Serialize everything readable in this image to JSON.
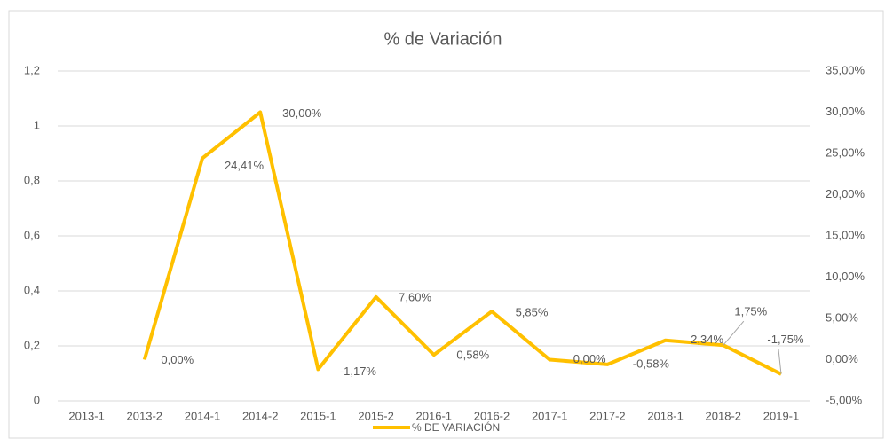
{
  "chart_data": {
    "type": "line",
    "title": "% de Variación",
    "categories": [
      "2013-1",
      "2013-2",
      "2014-1",
      "2014-2",
      "2015-1",
      "2015-2",
      "2016-1",
      "2016-2",
      "2017-1",
      "2017-2",
      "2018-1",
      "2018-2",
      "2019-1"
    ],
    "series": [
      {
        "name": "% DE VARIACIÓN",
        "color": "#FFC000",
        "axis": "y2",
        "values": [
          null,
          0,
          24.41,
          30,
          -1.17,
          7.6,
          0.58,
          5.85,
          0,
          -0.58,
          2.34,
          1.75,
          -1.75
        ],
        "value_labels": [
          null,
          "0,00%",
          "24,41%",
          "30,00%",
          "-1,17%",
          "7,60%",
          "0,58%",
          "5,85%",
          "0,00%",
          "-0,58%",
          "2,34%",
          "1,75%",
          "-1,75%"
        ]
      }
    ],
    "ylim": [
      0,
      1.2
    ],
    "yticks": [
      0,
      {
        "value": 0.2,
        "label": "0,2"
      },
      {
        "value": 0.4,
        "label": "0,4"
      },
      {
        "value": 0.6,
        "label": "0,6"
      },
      {
        "value": 0.8,
        "label": "0,8"
      },
      1,
      {
        "value": 1.2,
        "label": "1,2"
      }
    ],
    "y2lim": [
      -5,
      35
    ],
    "y2ticks": [
      {
        "value": -5,
        "label": "-5,00%"
      },
      {
        "value": 0,
        "label": "0,00%"
      },
      {
        "value": 5,
        "label": "5,00%"
      },
      {
        "value": 10,
        "label": "10,00%"
      },
      {
        "value": 15,
        "label": "15,00%"
      },
      {
        "value": 20,
        "label": "20,00%"
      },
      {
        "value": 25,
        "label": "25,00%"
      },
      {
        "value": 30,
        "label": "30,00%"
      },
      {
        "value": 35,
        "label": "35,00%"
      }
    ],
    "grid": true,
    "legend": "bottom"
  }
}
